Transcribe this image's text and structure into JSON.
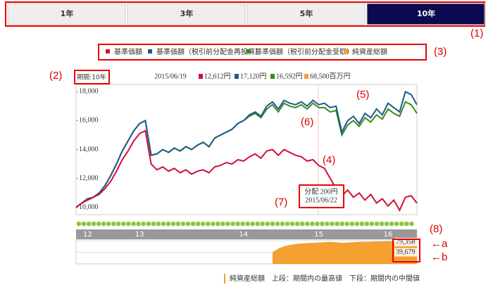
{
  "tabs": {
    "items": [
      "1年",
      "3年",
      "5年",
      "10年"
    ],
    "active": 3
  },
  "header": {
    "period": "期間:10年",
    "date": "2015/06/19",
    "values": [
      "12,612円",
      "17,120円",
      "16,592円",
      "68,500百万円"
    ]
  },
  "tooltip": {
    "line1": "分配 200円",
    "line2": "2015/06/22"
  },
  "annotations": {
    "n1": "(1)",
    "n2": "(2)",
    "n3": "(3)",
    "n4": "(4)",
    "n5": "(5)",
    "n6": "(6)",
    "n7": "(7)",
    "n8": "(8)",
    "a": "←a",
    "b": "←b"
  },
  "footer": "純資産総額　上段：期間内の最高値　下段：期間内の中間値",
  "chart_data": [
    {
      "type": "line",
      "categories": [
        null,
        null,
        "12",
        null,
        null,
        null,
        null,
        null,
        null,
        null,
        null,
        "13",
        null,
        null,
        null,
        null,
        null,
        null,
        null,
        null,
        null,
        null,
        null,
        null,
        null,
        null,
        null,
        null,
        null,
        "14",
        null,
        null,
        null,
        null,
        null,
        null,
        null,
        null,
        null,
        null,
        null,
        null,
        "15",
        null,
        null,
        null,
        null,
        null,
        null,
        null,
        null,
        null,
        null,
        null,
        "16",
        null,
        null,
        null,
        null,
        null
      ],
      "ylim": [
        9500,
        18500
      ],
      "yticks": [
        {
          "value": 10000,
          "label": "10,000"
        },
        {
          "value": 12000,
          "label": "12,000"
        },
        {
          "value": 14000,
          "label": "14,000"
        },
        {
          "value": 16000,
          "label": "16,000"
        },
        {
          "value": 18000,
          "label": "18,000"
        }
      ],
      "grid": false,
      "series": [
        {
          "name": "基準価額",
          "color": "#d0103a",
          "values": [
            10000,
            10300,
            10500,
            10700,
            10900,
            11300,
            11800,
            12500,
            13300,
            13900,
            14600,
            15100,
            15300,
            13000,
            12600,
            12800,
            12500,
            12700,
            12400,
            12600,
            12300,
            12500,
            12600,
            12400,
            12800,
            12900,
            13100,
            13000,
            13300,
            13200,
            13500,
            13700,
            13400,
            13900,
            14000,
            13600,
            14000,
            13800,
            13600,
            13500,
            13200,
            13300,
            12900,
            12700,
            12000,
            11300,
            10800,
            11200,
            10700,
            11000,
            10500,
            10900,
            10300,
            10600,
            10100,
            10500,
            9800,
            10700,
            10800,
            10300
          ]
        },
        {
          "name": "基準価額（税引前分配金再投資）",
          "color": "#1f5a8a",
          "values": [
            10000,
            10300,
            10600,
            10700,
            11000,
            11500,
            12200,
            13000,
            13900,
            14600,
            15300,
            15800,
            16000,
            13600,
            13700,
            14000,
            13800,
            14100,
            13900,
            14200,
            14000,
            14300,
            14500,
            14200,
            14800,
            15000,
            15200,
            15400,
            15800,
            16000,
            16400,
            16600,
            16300,
            17000,
            17300,
            16800,
            17400,
            17200,
            17100,
            17300,
            17000,
            17400,
            17100,
            17200,
            16900,
            17000,
            15200,
            16000,
            16300,
            15800,
            16500,
            16200,
            16800,
            16400,
            17200,
            16900,
            16600,
            18000,
            17800,
            17100
          ]
        },
        {
          "name": "基準価額（税引前分配金受取）",
          "color": "#3a8a1f",
          "values": [
            10000,
            10300,
            10600,
            10700,
            11000,
            11500,
            12200,
            13000,
            13900,
            14600,
            15300,
            15800,
            16000,
            13600,
            13700,
            14000,
            13800,
            14100,
            13900,
            14200,
            14000,
            14300,
            14500,
            14200,
            14800,
            15000,
            15200,
            15400,
            15800,
            16000,
            16300,
            16500,
            16200,
            16800,
            17100,
            16600,
            17200,
            17000,
            16900,
            17100,
            16800,
            17200,
            16900,
            16900,
            16600,
            16700,
            15000,
            15700,
            16000,
            15600,
            16200,
            15900,
            16400,
            16100,
            16800,
            16500,
            16300,
            17300,
            17100,
            16500
          ]
        }
      ]
    },
    {
      "type": "area",
      "name": "純資産総額",
      "color": "#f5a030",
      "ylim": [
        0,
        79358
      ],
      "yticks": [
        {
          "value": 79358,
          "label": "79,358"
        },
        {
          "value": 39679,
          "label": "39,679"
        }
      ],
      "values": [
        null,
        null,
        null,
        null,
        null,
        null,
        null,
        null,
        null,
        null,
        null,
        null,
        null,
        null,
        null,
        null,
        null,
        null,
        null,
        null,
        null,
        null,
        null,
        null,
        null,
        null,
        null,
        null,
        null,
        null,
        null,
        null,
        null,
        null,
        40000,
        52000,
        60000,
        65000,
        68000,
        70000,
        71000,
        72000,
        73000,
        74000,
        75000,
        74000,
        72000,
        73000,
        74000,
        75000,
        76000,
        76000,
        77000,
        77000,
        78000,
        77000,
        78000,
        79000,
        79358,
        78000
      ]
    }
  ]
}
